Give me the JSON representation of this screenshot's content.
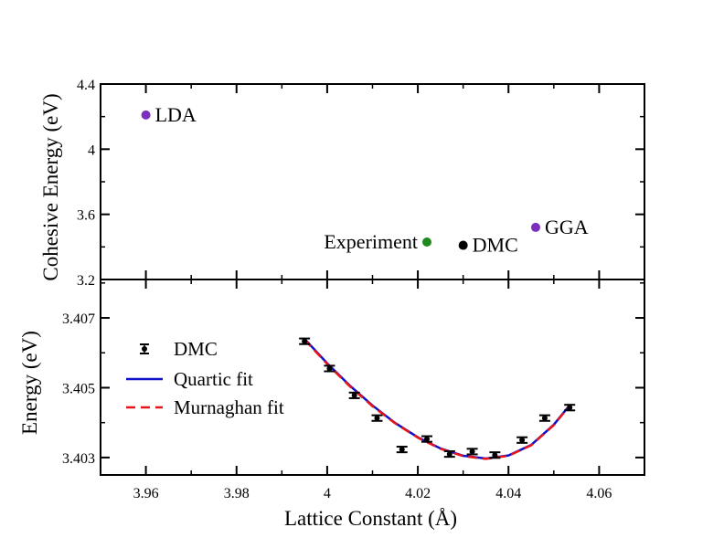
{
  "chart_data": [
    {
      "type": "scatter",
      "panel": "top",
      "ylabel": "Cohesive Energy (eV)",
      "xlim": [
        3.95,
        4.07
      ],
      "ylim": [
        3.2,
        4.4
      ],
      "yticks": [
        3.2,
        3.6,
        4,
        4.4
      ],
      "ytick_labels": [
        "3.2",
        "3.6",
        "4",
        "4.4"
      ],
      "points": [
        {
          "label": "LDA",
          "x": 3.96,
          "y": 4.21,
          "color": "#7b2fbe",
          "label_side": "right"
        },
        {
          "label": "Experiment",
          "x": 4.022,
          "y": 3.43,
          "color": "#1e8a1e",
          "label_side": "left"
        },
        {
          "label": "DMC",
          "x": 4.03,
          "y": 3.41,
          "color": "#000000",
          "label_side": "right"
        },
        {
          "label": "GGA",
          "x": 4.046,
          "y": 3.52,
          "color": "#7b2fbe",
          "label_side": "right"
        }
      ]
    },
    {
      "type": "scatter",
      "panel": "bottom",
      "xlabel": "Lattice Constant (Å)",
      "ylabel": "Energy (eV)",
      "xlim": [
        3.95,
        4.07
      ],
      "ylim": [
        3.4025,
        3.4081
      ],
      "xticks": [
        3.96,
        3.98,
        4,
        4.02,
        4.04,
        4.06
      ],
      "xtick_labels": [
        "3.96",
        "3.98",
        "4",
        "4.02",
        "4.04",
        "4.06"
      ],
      "yticks": [
        3.403,
        3.405,
        3.407
      ],
      "ytick_labels": [
        "3.403",
        "3.405",
        "3.407"
      ],
      "series": [
        {
          "name": "DMC",
          "kind": "errorbar",
          "color": "#000000",
          "x": [
            3.995,
            4.0005,
            4.006,
            4.011,
            4.0165,
            4.022,
            4.027,
            4.032,
            4.037,
            4.043,
            4.048,
            4.0535
          ],
          "y": [
            3.40633,
            3.40555,
            3.40478,
            3.40413,
            3.40323,
            3.40353,
            3.4031,
            3.40317,
            3.40307,
            3.4035,
            3.40413,
            3.40443
          ],
          "yerr": [
            8e-05,
            8e-05,
            8e-05,
            8e-05,
            8e-05,
            8e-05,
            8e-05,
            8e-05,
            8e-05,
            8e-05,
            8e-05,
            8e-05
          ]
        },
        {
          "name": "Quartic fit",
          "kind": "line",
          "color": "#1010c8",
          "dash": "solid",
          "x": [
            3.995,
            4.0,
            4.005,
            4.01,
            4.015,
            4.02,
            4.025,
            4.03,
            4.035,
            4.04,
            4.045,
            4.05,
            4.0535
          ],
          "y": [
            3.4064,
            3.4057,
            3.40506,
            3.40449,
            3.40399,
            3.40358,
            3.40326,
            3.40305,
            3.40297,
            3.40306,
            3.40336,
            3.40394,
            3.4045
          ]
        },
        {
          "name": "Murnaghan fit",
          "kind": "line",
          "color": "#e8141a",
          "dash": "dashed",
          "x": [
            3.995,
            4.0,
            4.005,
            4.01,
            4.015,
            4.02,
            4.025,
            4.03,
            4.035,
            4.04,
            4.045,
            4.05,
            4.0535
          ],
          "y": [
            3.40638,
            3.40568,
            3.40504,
            3.40447,
            3.40398,
            3.40357,
            3.40325,
            3.40304,
            3.40296,
            3.40305,
            3.40335,
            3.40393,
            3.40449
          ]
        }
      ],
      "legend": [
        "DMC",
        "Quartic fit",
        "Murnaghan fit"
      ],
      "legend_position": "upper-left"
    }
  ]
}
